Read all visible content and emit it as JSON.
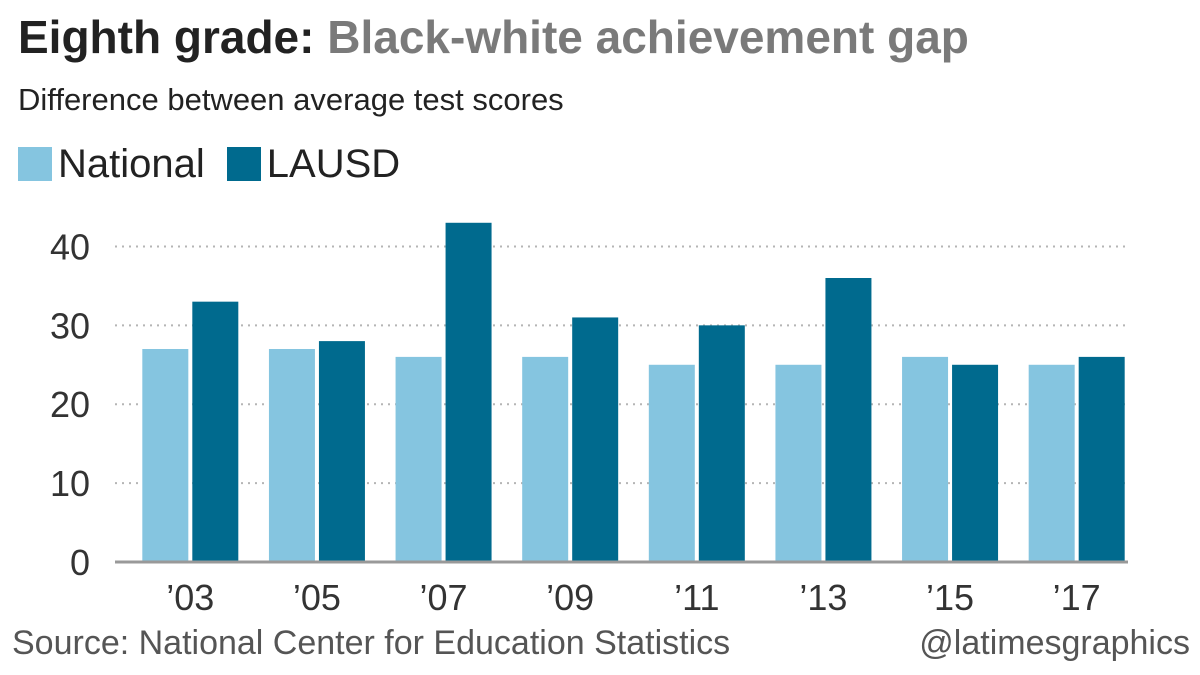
{
  "title_lead": "Eighth grade:",
  "title_rest": "Black-white achievement gap",
  "subtitle": "Difference between average test scores",
  "source": "Source: National Center for Education Statistics",
  "credit": "@latimesgraphics",
  "colors": {
    "national": "#85c5e0",
    "lausd": "#006a8e",
    "grid": "#b5b5b5",
    "axis": "#999999",
    "title_rest": "#7a7a7a"
  },
  "legend": [
    {
      "label": "National",
      "color": "#85c5e0"
    },
    {
      "label": "LAUSD",
      "color": "#006a8e"
    }
  ],
  "chart_data": {
    "type": "bar",
    "categories": [
      "’03",
      "’05",
      "’07",
      "’09",
      "’11",
      "’13",
      "’15",
      "’17"
    ],
    "series": [
      {
        "name": "National",
        "values": [
          27,
          27,
          26,
          26,
          25,
          25,
          26,
          25
        ]
      },
      {
        "name": "LAUSD",
        "values": [
          33,
          28,
          43,
          31,
          30,
          36,
          25,
          26
        ]
      }
    ],
    "title": "Eighth grade: Black-white achievement gap",
    "subtitle": "Difference between average test scores",
    "xlabel": "",
    "ylabel": "",
    "ylim": [
      0,
      45
    ],
    "yticks": [
      0,
      10,
      20,
      30,
      40
    ],
    "grid": true,
    "legend_position": "top-left"
  }
}
